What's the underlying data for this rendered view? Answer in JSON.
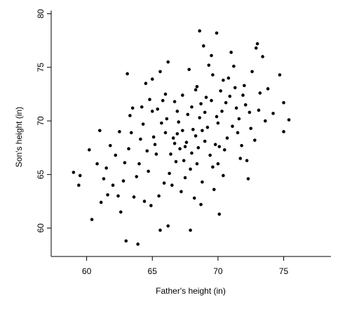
{
  "chart_data": {
    "type": "scatter",
    "xlabel": "Father's height (in)",
    "ylabel": "Son's height (in)",
    "color": "#000000",
    "grid": false,
    "xlim": [
      57.3,
      78.6
    ],
    "ylim": [
      57.35,
      80.3
    ],
    "xticks": [
      60,
      65,
      70,
      75
    ],
    "yticks": [
      60,
      65,
      70,
      75,
      80
    ],
    "x": [
      59.0,
      59.5,
      59.4,
      60.4,
      60.2,
      61.0,
      61.1,
      62.6,
      63.0,
      63.9,
      63.1,
      68.6,
      69.9,
      73.0,
      72.9,
      75.4,
      75.0,
      74.7,
      75.0,
      73.4,
      67.9,
      65.6,
      66.2,
      70.1,
      68.7,
      72.3,
      64.4,
      62.0,
      61.5,
      60.8,
      61.8,
      62.5,
      62.9,
      63.3,
      63.8,
      64.2,
      64.6,
      65.0,
      65.3,
      65.7,
      66.0,
      66.3,
      66.6,
      66.9,
      67.2,
      67.5,
      67.8,
      68.1,
      68.4,
      68.7,
      69.0,
      69.3,
      69.6,
      69.9,
      70.2,
      70.5,
      70.8,
      71.1,
      71.4,
      71.7,
      72.0,
      72.4,
      72.8,
      73.2,
      73.6,
      71.0,
      70.4,
      69.7,
      68.9,
      68.2,
      67.4,
      66.7,
      65.9,
      65.1,
      64.3,
      63.6,
      62.8,
      62.2,
      61.6,
      63.4,
      64.9,
      65.4,
      66.1,
      66.8,
      67.3,
      67.7,
      68.0,
      68.3,
      68.6,
      69.2,
      69.5,
      69.8,
      70.0,
      70.3,
      70.6,
      70.9,
      71.3,
      71.6,
      72.1,
      72.6,
      66.4,
      66.9,
      67.1,
      67.6,
      68.0,
      68.5,
      68.8,
      69.1,
      69.4,
      67.0,
      64.0,
      64.7,
      65.2,
      65.8,
      66.5,
      63.2,
      62.4,
      61.3,
      64.5,
      65.5,
      70.7,
      71.2,
      71.8,
      72.5,
      73.1,
      73.8,
      74.2,
      70.0,
      69.6,
      68.4,
      66.2,
      67.9,
      68.8,
      69.5,
      70.4,
      71.5,
      72.2,
      67.3,
      66.0,
      65.0,
      63.5,
      64.1,
      64.8,
      65.6,
      66.7,
      67.5,
      68.3,
      69.0,
      70.1,
      71.9
    ],
    "y": [
      65.2,
      64.9,
      64.0,
      60.8,
      67.3,
      69.1,
      62.4,
      61.5,
      58.8,
      58.5,
      74.4,
      78.4,
      78.2,
      77.2,
      76.8,
      70.1,
      71.7,
      74.3,
      69.0,
      76.0,
      59.8,
      59.8,
      60.2,
      61.3,
      62.2,
      64.6,
      62.5,
      64.0,
      65.6,
      66.0,
      67.7,
      69.0,
      66.1,
      70.5,
      64.8,
      71.3,
      67.2,
      73.9,
      66.9,
      69.8,
      72.5,
      65.1,
      68.4,
      70.9,
      63.4,
      67.6,
      74.8,
      69.2,
      66.0,
      71.6,
      68.1,
      75.2,
      65.7,
      70.4,
      72.8,
      67.3,
      74.0,
      69.5,
      71.2,
      66.5,
      73.3,
      70.8,
      68.2,
      72.6,
      70.0,
      76.4,
      64.9,
      63.6,
      77.0,
      62.8,
      66.3,
      67.9,
      64.2,
      68.5,
      69.7,
      62.9,
      64.4,
      66.8,
      63.1,
      68.9,
      62.1,
      71.1,
      70.2,
      66.2,
      69.1,
      70.6,
      67.0,
      68.6,
      70.3,
      69.4,
      71.9,
      67.8,
      69.8,
      70.9,
      71.7,
      72.3,
      73.1,
      70.2,
      71.5,
      74.6,
      66.9,
      68.8,
      67.4,
      68.0,
      71.3,
      67.5,
      69.1,
      72.2,
      66.8,
      69.9,
      66.0,
      65.3,
      67.8,
      71.9,
      64.0,
      67.4,
      63.0,
      64.6,
      73.5,
      63.0,
      68.4,
      75.1,
      67.7,
      69.3,
      71.0,
      73.0,
      70.7,
      66.0,
      74.3,
      73.2,
      75.5,
      65.5,
      64.3,
      76.1,
      73.8,
      68.9,
      66.3,
      72.4,
      68.9,
      70.9,
      71.2,
      68.3,
      72.0,
      74.6,
      71.8,
      64.7,
      72.9,
      70.8,
      67.6,
      72.4
    ]
  }
}
